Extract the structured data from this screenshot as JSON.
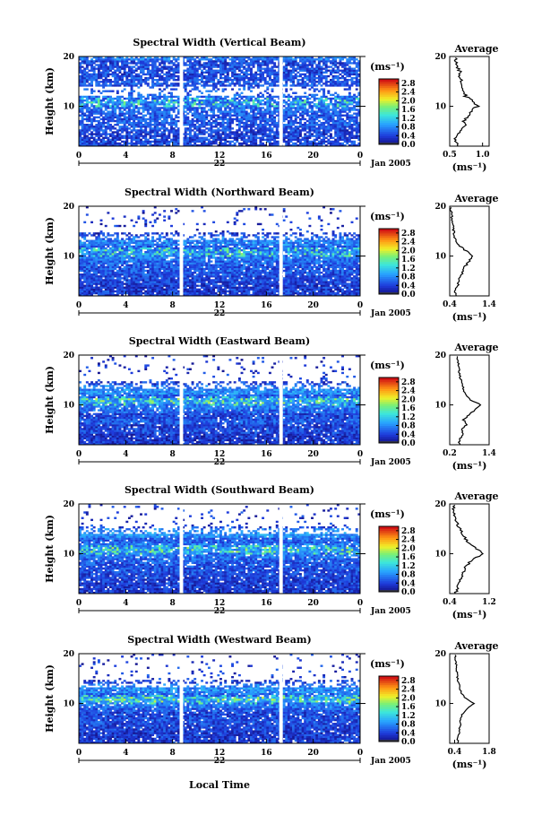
{
  "figure": {
    "date_label": "Jan 2005",
    "x_bottom_label": "Local Time",
    "colorbar_unit": "(ms⁻¹)",
    "avg_title": "Average",
    "avg_unit": "(ms⁻¹)"
  },
  "chart_data": [
    {
      "type": "heatmap",
      "title": "Spectral Width (Vertical Beam)",
      "ylabel": "Height (km)",
      "xlabel": "Local Time",
      "x_ticks": [
        "0",
        "4",
        "8",
        "12",
        "16",
        "20",
        "0"
      ],
      "day_label": "22",
      "y_ticks": [
        "20",
        "10"
      ],
      "ylim": [
        2,
        20
      ],
      "xlim_hours": [
        0,
        24
      ],
      "data_gaps_hours": [
        [
          8.6,
          8.9
        ],
        [
          17.1,
          17.4
        ]
      ],
      "cloud_top_km": 20,
      "colorbar": {
        "unit": "ms-1",
        "ticks": [
          "0.0",
          "0.4",
          "0.8",
          "1.2",
          "1.6",
          "2.0",
          "2.4",
          "2.8"
        ],
        "range": [
          0,
          3.0
        ]
      },
      "average_profile": {
        "xlim": [
          0.5,
          1.1
        ],
        "x_ticks": [
          "0.5",
          "1.0"
        ],
        "y_ticks": [
          "20",
          "10"
        ],
        "height_km": [
          2.5,
          3.5,
          4.5,
          5.5,
          6.5,
          7.5,
          8.5,
          9.5,
          10.5,
          11.5,
          12.5,
          13.5,
          14.5,
          15.5,
          16.5,
          17.5,
          18.5,
          19.5
        ],
        "width_ms": [
          0.62,
          0.58,
          0.6,
          0.68,
          0.74,
          0.72,
          0.78,
          0.82,
          0.92,
          0.86,
          0.74,
          0.72,
          0.7,
          0.68,
          0.64,
          0.66,
          0.62,
          0.6
        ]
      }
    },
    {
      "type": "heatmap",
      "title": "Spectral Width (Northward Beam)",
      "ylabel": "Height (km)",
      "xlabel": "Local Time",
      "x_ticks": [
        "0",
        "4",
        "8",
        "12",
        "16",
        "20",
        "0"
      ],
      "day_label": "22",
      "y_ticks": [
        "20",
        "10"
      ],
      "ylim": [
        2,
        20
      ],
      "xlim_hours": [
        0,
        24
      ],
      "data_gaps_hours": [
        [
          8.6,
          8.9
        ],
        [
          17.1,
          17.4
        ]
      ],
      "cloud_top_km": 13,
      "colorbar": {
        "unit": "ms-1",
        "ticks": [
          "0.0",
          "0.4",
          "0.8",
          "1.2",
          "1.6",
          "2.0",
          "2.4",
          "2.8"
        ],
        "range": [
          0,
          3.0
        ]
      },
      "average_profile": {
        "xlim": [
          0.4,
          1.4
        ],
        "x_ticks": [
          "0.4",
          "1.4"
        ],
        "y_ticks": [
          "20",
          "10"
        ],
        "height_km": [
          2.5,
          3.5,
          4.5,
          5.5,
          6.5,
          7.5,
          8.5,
          9.5,
          10.5,
          11.5,
          12.5,
          13.5,
          14.5,
          15.5,
          16.5,
          17.5,
          18.5,
          19.5
        ],
        "width_ms": [
          0.55,
          0.52,
          0.6,
          0.62,
          0.7,
          0.72,
          0.8,
          0.9,
          1.0,
          0.82,
          0.66,
          0.58,
          0.52,
          0.5,
          0.48,
          0.46,
          0.45,
          0.44
        ]
      }
    },
    {
      "type": "heatmap",
      "title": "Spectral Width (Eastward Beam)",
      "ylabel": "Height (km)",
      "xlabel": "Local Time",
      "x_ticks": [
        "0",
        "4",
        "8",
        "12",
        "16",
        "20",
        "0"
      ],
      "day_label": "22",
      "y_ticks": [
        "20",
        "10"
      ],
      "ylim": [
        2,
        20
      ],
      "xlim_hours": [
        0,
        24
      ],
      "data_gaps_hours": [
        [
          8.6,
          8.9
        ],
        [
          17.1,
          17.4
        ]
      ],
      "cloud_top_km": 13,
      "colorbar": {
        "unit": "ms-1",
        "ticks": [
          "0.0",
          "0.4",
          "0.8",
          "1.2",
          "1.6",
          "2.0",
          "2.4",
          "2.8"
        ],
        "range": [
          0,
          3.0
        ]
      },
      "average_profile": {
        "xlim": [
          0.2,
          1.4
        ],
        "x_ticks": [
          "0.2",
          "1.4"
        ],
        "y_ticks": [
          "20",
          "10"
        ],
        "height_km": [
          2.5,
          3.5,
          4.5,
          5.5,
          6.5,
          7.5,
          8.5,
          9.5,
          10.5,
          11.5,
          12.5,
          13.5,
          14.5,
          15.5,
          16.5,
          17.5,
          18.5,
          19.5
        ],
        "width_ms": [
          0.5,
          0.48,
          0.62,
          0.55,
          0.72,
          0.62,
          0.8,
          0.95,
          1.15,
          0.82,
          0.7,
          0.62,
          0.58,
          0.54,
          0.5,
          0.48,
          0.46,
          0.44
        ]
      }
    },
    {
      "type": "heatmap",
      "title": "Spectral Width (Southward Beam)",
      "ylabel": "Height (km)",
      "xlabel": "Local Time",
      "x_ticks": [
        "0",
        "4",
        "8",
        "12",
        "16",
        "20",
        "0"
      ],
      "day_label": "22",
      "y_ticks": [
        "20",
        "10"
      ],
      "ylim": [
        2,
        20
      ],
      "xlim_hours": [
        0,
        24
      ],
      "data_gaps_hours": [
        [
          8.6,
          8.9
        ],
        [
          17.1,
          17.4
        ]
      ],
      "cloud_top_km": 14,
      "colorbar": {
        "unit": "ms-1",
        "ticks": [
          "0.0",
          "0.4",
          "0.8",
          "1.2",
          "1.6",
          "2.0",
          "2.4",
          "2.8"
        ],
        "range": [
          0,
          3.0
        ]
      },
      "average_profile": {
        "xlim": [
          0.4,
          1.2
        ],
        "x_ticks": [
          "0.4",
          "1.2"
        ],
        "y_ticks": [
          "20",
          "10"
        ],
        "height_km": [
          2.5,
          3.5,
          4.5,
          5.5,
          6.5,
          7.5,
          8.5,
          9.5,
          10.5,
          11.5,
          12.5,
          13.5,
          14.5,
          15.5,
          16.5,
          17.5,
          18.5,
          19.5
        ],
        "width_ms": [
          0.52,
          0.55,
          0.58,
          0.62,
          0.66,
          0.7,
          0.78,
          0.88,
          1.1,
          0.95,
          0.8,
          0.72,
          0.66,
          0.6,
          0.56,
          0.52,
          0.5,
          0.48
        ]
      }
    },
    {
      "type": "heatmap",
      "title": "Spectral Width (Westward Beam)",
      "ylabel": "Height (km)",
      "xlabel": "Local Time",
      "x_ticks": [
        "0",
        "4",
        "8",
        "12",
        "16",
        "20",
        "0"
      ],
      "day_label": "22",
      "y_ticks": [
        "20",
        "10"
      ],
      "ylim": [
        2,
        20
      ],
      "xlim_hours": [
        0,
        24
      ],
      "data_gaps_hours": [
        [
          8.6,
          8.9
        ],
        [
          17.1,
          17.4
        ]
      ],
      "cloud_top_km": 13,
      "colorbar": {
        "unit": "ms-1",
        "ticks": [
          "0.0",
          "0.4",
          "0.8",
          "1.2",
          "1.6",
          "2.0",
          "2.4",
          "2.8"
        ],
        "range": [
          0,
          3.0
        ]
      },
      "average_profile": {
        "xlim": [
          0.2,
          1.8
        ],
        "x_ticks": [
          "0.4",
          "1.8"
        ],
        "y_ticks": [
          "20",
          "10"
        ],
        "height_km": [
          2.5,
          3.5,
          4.5,
          5.5,
          6.5,
          7.5,
          8.5,
          9.5,
          10.5,
          11.5,
          12.5,
          13.5,
          14.5,
          15.5,
          16.5,
          17.5,
          18.5,
          19.5
        ],
        "width_ms": [
          0.55,
          0.52,
          0.58,
          0.6,
          0.66,
          0.62,
          0.74,
          0.9,
          1.2,
          0.85,
          0.7,
          0.62,
          0.56,
          0.52,
          0.5,
          0.48,
          0.46,
          0.44
        ]
      }
    }
  ]
}
